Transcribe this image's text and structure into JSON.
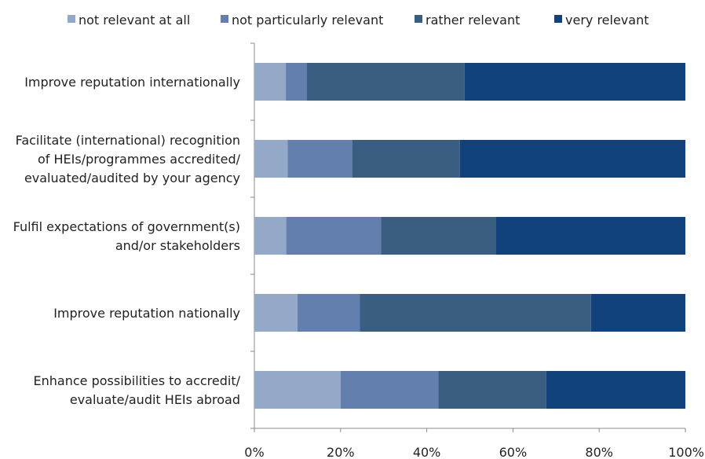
{
  "chart_data": {
    "type": "bar",
    "orientation": "horizontal",
    "stacked": true,
    "percent": true,
    "title": "",
    "xlabel": "",
    "ylabel": "",
    "categories": [
      [
        "Improve reputation internationally"
      ],
      [
        "Facilitate (international) recognition",
        "of HEIs/programmes accredited/",
        "evaluated/audited by your agency"
      ],
      [
        "Fulfil expectations of government(s)",
        "and/or stakeholders"
      ],
      [
        "Improve reputation nationally"
      ],
      [
        "Enhance possibilities to accredit/",
        "evaluate/audit HEIs abroad"
      ]
    ],
    "series": [
      {
        "name": "not relevant at all",
        "color": "#94a8c8",
        "values": [
          7.3,
          7.7,
          7.4,
          10.0,
          20.0
        ]
      },
      {
        "name": "not particularly relevant",
        "color": "#637fad",
        "values": [
          4.9,
          15.0,
          22.0,
          14.5,
          22.7
        ]
      },
      {
        "name": "rather relevant",
        "color": "#3a5e82",
        "values": [
          36.6,
          25.0,
          26.7,
          53.6,
          25.0
        ]
      },
      {
        "name": "very relevant",
        "color": "#12427b",
        "values": [
          51.2,
          52.3,
          43.9,
          21.9,
          32.3
        ]
      }
    ],
    "xlim": [
      0,
      100
    ],
    "xticks": [
      "0%",
      "20%",
      "40%",
      "60%",
      "80%",
      "100%"
    ],
    "legend_position": "top",
    "grid": false
  }
}
